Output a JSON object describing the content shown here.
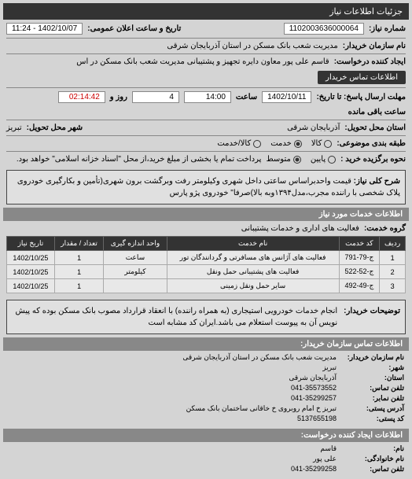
{
  "header": {
    "title": "جزئیات اطلاعات نیاز"
  },
  "main": {
    "number_label": "شماره نیاز:",
    "number_value": "1102003636000064",
    "date_label": "تاریخ و ساعت اعلان عمومی:",
    "date_value": "1402/10/07 - 11:24",
    "buyer_label": "نام سازمان خریدار:",
    "buyer_value": "مدیریت شعب بانک مسکن در استان آذربایجان شرقی",
    "creator_label": "ایجاد کننده درخواست:",
    "creator_value": "قاسم علی پور معاون دایره تجهیز و پشتیبانی مدیریت شعب بانک مسکن در اس",
    "contact_btn": "اطلاعات تماس خریدار",
    "deadline_label": "مهلت ارسال پاسخ: تا تاریخ:",
    "deadline_date": "1402/10/11",
    "time_label": "ساعت",
    "deadline_time": "14:00",
    "days_count": "4",
    "days_label": "روز و",
    "remain_time": "02:14:42",
    "remain_label": "ساعت باقی مانده",
    "province_label": "استان محل تحویل:",
    "province_value": "آذربایجان شرقی",
    "city_label": "شهر محل تحویل:",
    "city_value": "تبریز",
    "subject_type_label": "طبقه بندی موضوعی:",
    "radio_goods": "کالا",
    "radio_service": "خدمت",
    "radio_both": "کالا/خدمت",
    "pay_type_label": "نحوه برگزیده خرید :",
    "radio_low": "پایین",
    "radio_mid": "متوسط",
    "pay_note": "پرداخت تمام یا بخشی از مبلغ خرید،از محل \"اسناد خزانه اسلامی\" خواهد بود.",
    "desc_label": "شرح کلی نیاز:",
    "desc_text": "قیمت واحدبراساس ساعتی داخل شهری وکیلومتر رفت وبرگشت برون شهری(تأمین و بکارگیری خودروی پلاک شخصی با راننده مجرب،مدل۱۳۹۴وبه بالا)صرفا\" خودروی پژو پارس"
  },
  "service_info": {
    "title": "اطلاعات خدمات مورد نیاز",
    "group_label": "گروه خدمت:",
    "group_value": "فعالیت های اداری و خدمات پشتیبانی",
    "columns": [
      "ردیف",
      "کد خدمت",
      "نام خدمت",
      "واحد اندازه گیری",
      "تعداد / مقدار",
      "تاریخ نیاز"
    ],
    "rows": [
      [
        "1",
        "ج-79-791",
        "فعالیت های آژانس های مسافرتی و گردانندگان تور",
        "ساعت",
        "1",
        "1402/10/25"
      ],
      [
        "2",
        "ج-52-522",
        "فعالیت های پشتیبانی حمل ونقل",
        "کیلومتر",
        "1",
        "1402/10/25"
      ],
      [
        "3",
        "ج-49-492",
        "سایر حمل ونقل زمینی",
        "",
        "1",
        "1402/10/25"
      ]
    ]
  },
  "buyer_note": {
    "label": "توضیحات خریدار:",
    "text": "انجام خدمات خودرویی استیجاری (به همراه راننده) با انعقاد قرارداد مصوب بانک مسکن بوده که پیش نویس آن به پیوست استعلام می باشد.ایران کد مشابه است"
  },
  "contact": {
    "title": "اطلاعات تماس سازمان خریدار:",
    "org_label": "نام سازمان خریدار:",
    "org_value": "مدیریت شعب بانک مسکن در استان آذربایجان شرقی",
    "city_label": "شهر:",
    "city_value": "تبریز",
    "prov_label": "استان:",
    "prov_value": "آذربایجان شرقی",
    "phone_label": "تلفن تماس:",
    "phone_value": "041-35573552",
    "fax_label": "تلفن نمابر:",
    "fax_value": "041-35299257",
    "addr_label": "آدرس پستی:",
    "addr_value": "تبریز خ امام روبروی خ خاقانی ساختمان بانک مسکن",
    "post_label": "کد پستی:",
    "post_value": "5137655198"
  },
  "requester": {
    "title": "اطلاعات ایجاد کننده درخواست:",
    "name_label": "نام:",
    "name_value": "قاسم",
    "family_label": "نام خانوادگی:",
    "family_value": "علی پور",
    "phone_label": "تلفن تماس:",
    "phone_value": "041-35299258"
  }
}
